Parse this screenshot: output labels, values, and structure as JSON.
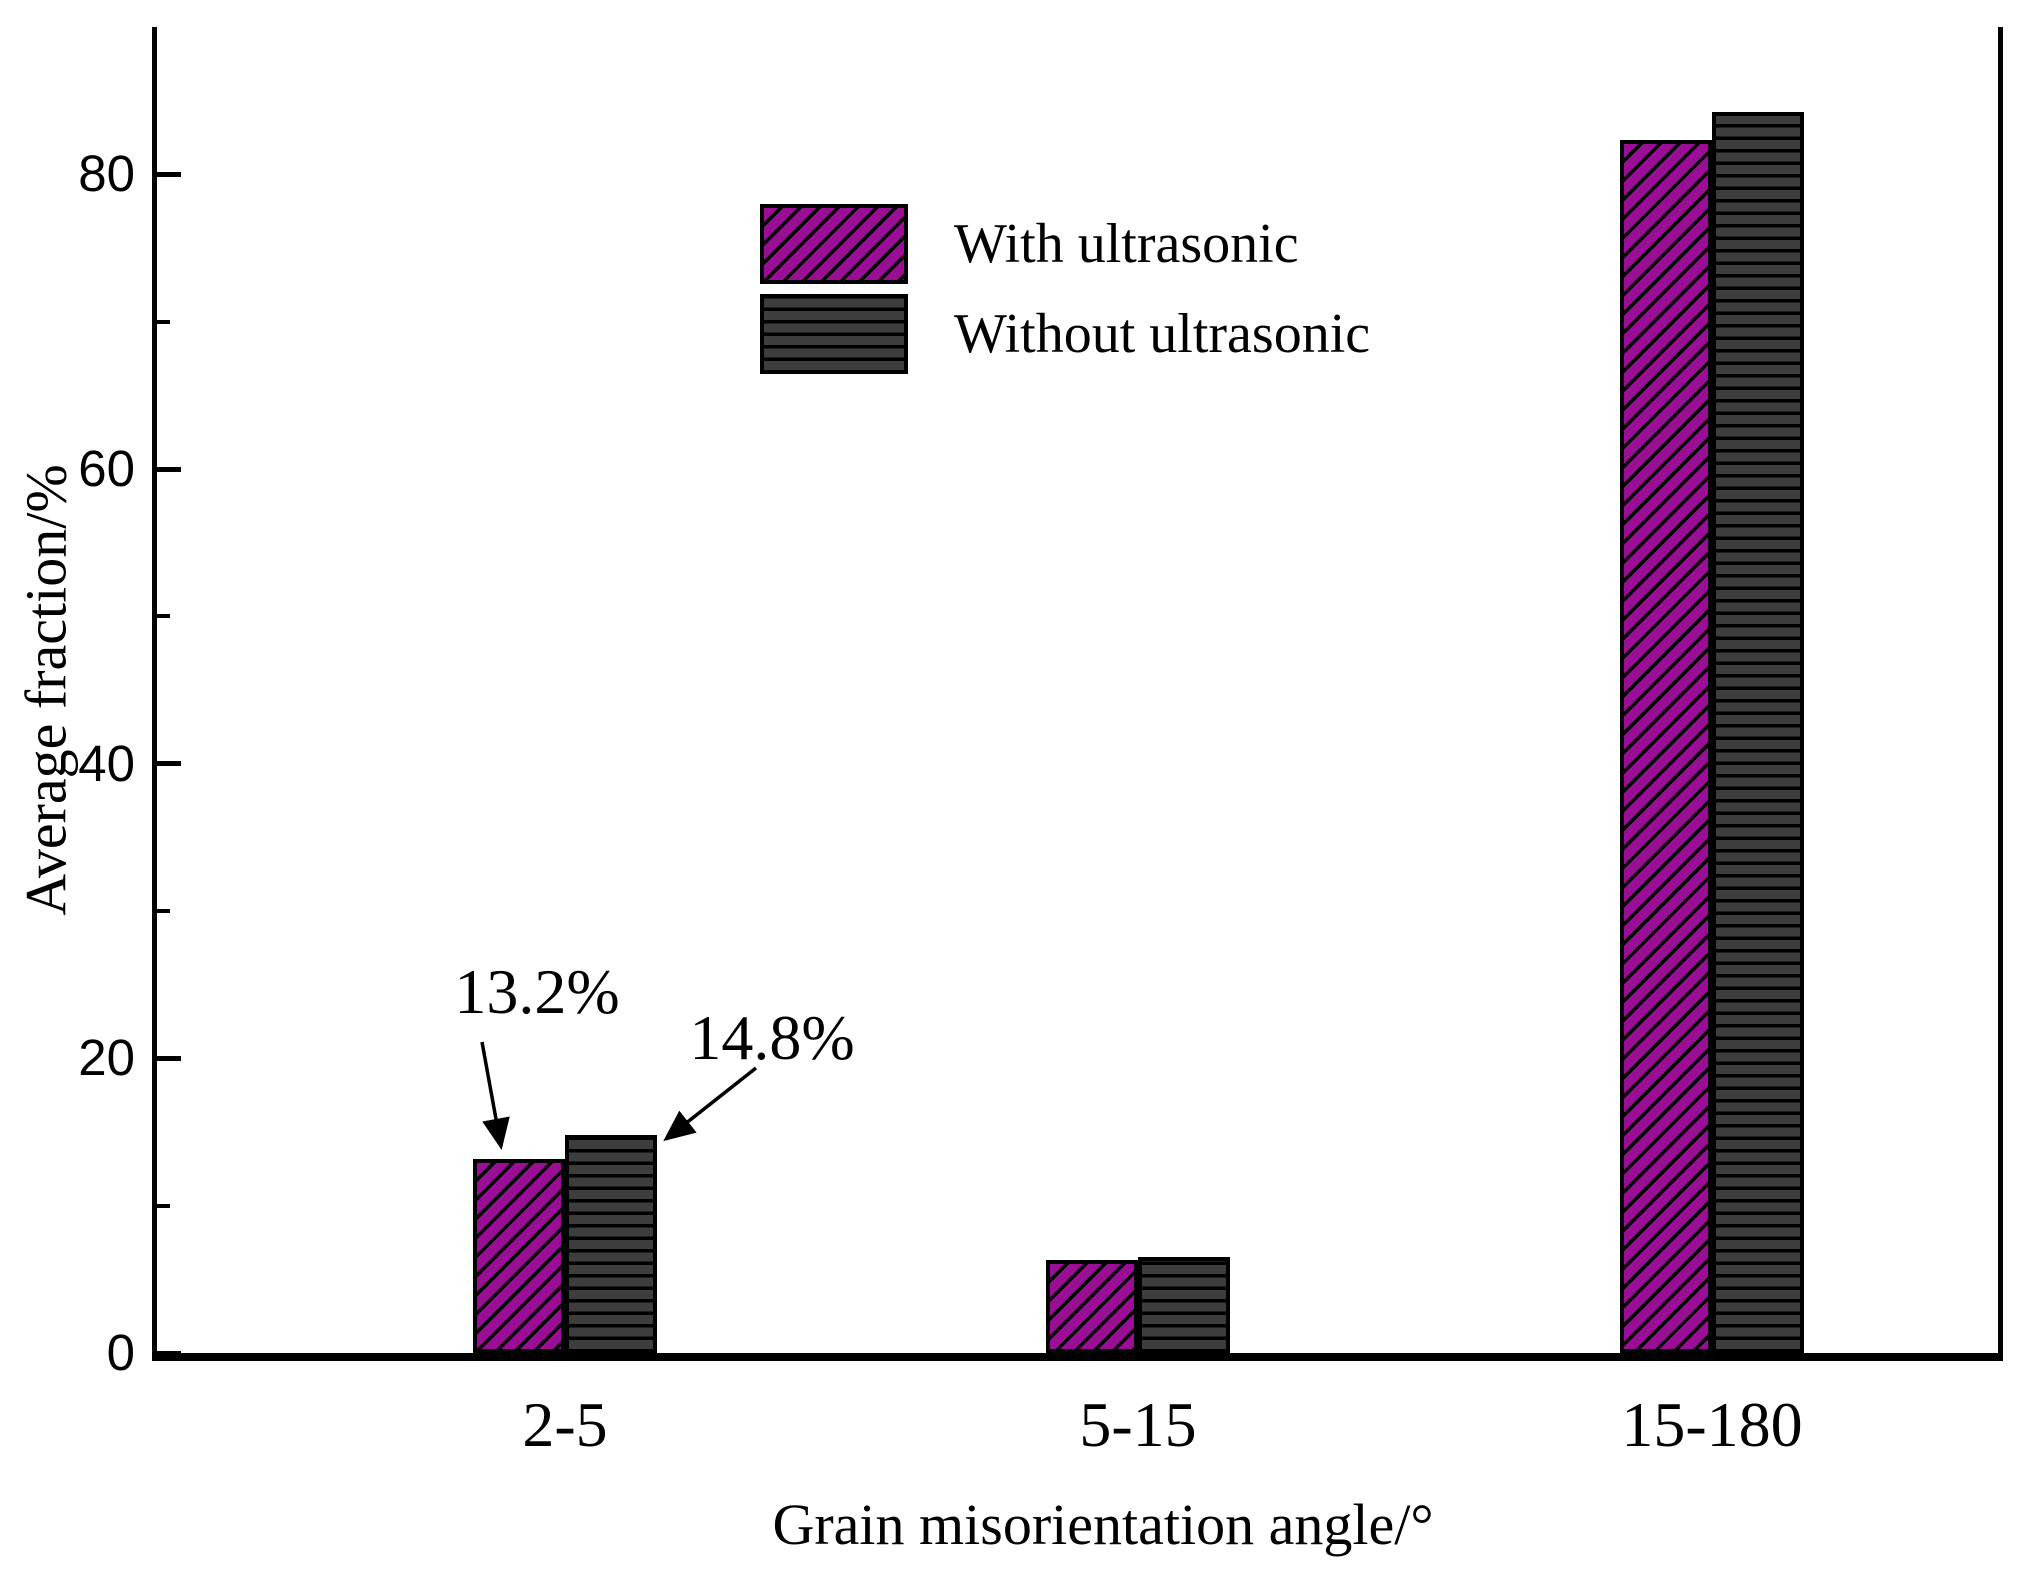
{
  "figure": {
    "background": "#ffffff"
  },
  "chart_data": {
    "type": "bar",
    "title": "",
    "xlabel": "Grain misorientation angle/°",
    "ylabel": "Average fraction/%",
    "categories": [
      "2-5",
      "5-15",
      "15-180"
    ],
    "series": [
      {
        "name": "With ultrasonic",
        "values": [
          13.2,
          6.3,
          82.3
        ],
        "color": "#9a0d95",
        "edge_color": "#000000",
        "hatch": "diagonal"
      },
      {
        "name": "Without ultrasonic",
        "values": [
          14.8,
          6.5,
          84.2
        ],
        "color": "#3d3d3d",
        "edge_color": "#000000",
        "hatch": "horizontal"
      }
    ],
    "ylim": [
      0,
      90
    ],
    "yticks_major": [
      0,
      20,
      40,
      60,
      80
    ],
    "yticks_minor": [
      10,
      30,
      50,
      70
    ],
    "grid": false,
    "legend_position": "upper-left-inside",
    "axis_color": "#000000",
    "annotations": [
      {
        "text": "13.2%",
        "series": 0,
        "category": 0
      },
      {
        "text": "14.8%",
        "series": 1,
        "category": 0
      }
    ]
  }
}
